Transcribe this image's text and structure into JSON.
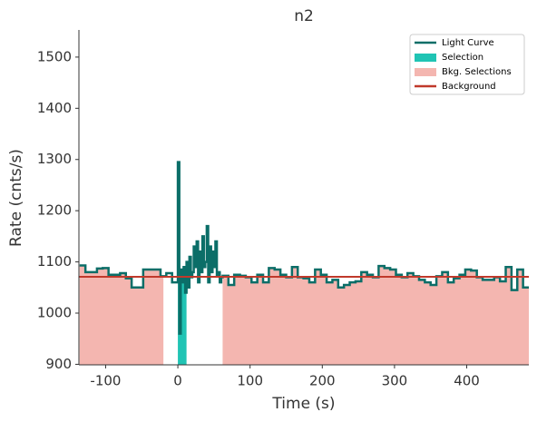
{
  "chart_data": {
    "type": "step",
    "title": "n2",
    "x_label": "Time (s)",
    "y_label": "Rate (cnts/s)",
    "xlim": [
      -137,
      486
    ],
    "ylim": [
      899,
      1553
    ],
    "xticks": [
      -100,
      0,
      100,
      200,
      300,
      400
    ],
    "yticks": [
      900,
      1000,
      1100,
      1200,
      1300,
      1400,
      1500
    ],
    "legend": "upper right",
    "series": [
      {
        "name": "Light Curve",
        "color": "#0b6e68",
        "x": [
          -136,
          -128,
          -120,
          -112,
          -104,
          -96,
          -88,
          -80,
          -72,
          -64,
          -56,
          -48,
          -40,
          -32,
          -24,
          -16,
          -8,
          0,
          2,
          4,
          6,
          8,
          10,
          12,
          14,
          16,
          18,
          20,
          22,
          24,
          26,
          28,
          30,
          32,
          34,
          36,
          38,
          40,
          42,
          44,
          46,
          48,
          50,
          52,
          54,
          56,
          58,
          60,
          62,
          70,
          78,
          86,
          94,
          102,
          110,
          118,
          126,
          134,
          142,
          150,
          158,
          166,
          174,
          182,
          190,
          198,
          206,
          214,
          222,
          230,
          238,
          246,
          254,
          262,
          270,
          278,
          286,
          294,
          302,
          310,
          318,
          326,
          334,
          342,
          350,
          358,
          366,
          374,
          382,
          390,
          398,
          406,
          414,
          422,
          430,
          438,
          446,
          454,
          462,
          470,
          478
        ],
        "values": [
          1093,
          1080,
          1080,
          1087,
          1088,
          1075,
          1075,
          1078,
          1068,
          1050,
          1050,
          1085,
          1085,
          1085,
          1072,
          1078,
          1060,
          1295,
          960,
          1085,
          1060,
          1090,
          1040,
          1100,
          1050,
          1110,
          1070,
          1080,
          1130,
          1090,
          1140,
          1060,
          1120,
          1080,
          1150,
          1090,
          1100,
          1170,
          1060,
          1130,
          1080,
          1120,
          1090,
          1140,
          1075,
          1080,
          1060,
          1070,
          1073,
          1055,
          1075,
          1073,
          1070,
          1060,
          1075,
          1060,
          1088,
          1085,
          1075,
          1070,
          1090,
          1070,
          1068,
          1060,
          1085,
          1075,
          1060,
          1065,
          1050,
          1055,
          1060,
          1062,
          1080,
          1075,
          1070,
          1092,
          1088,
          1085,
          1075,
          1070,
          1078,
          1072,
          1065,
          1060,
          1055,
          1072,
          1080,
          1060,
          1068,
          1075,
          1085,
          1083,
          1070,
          1065,
          1065,
          1070,
          1062,
          1090,
          1045,
          1085,
          1050
        ]
      }
    ],
    "selection": {
      "name": "Selection",
      "color": "#20c4b4",
      "intervals": [
        [
          0,
          12
        ]
      ]
    },
    "bkg_selections": {
      "name": "Bkg. Selections",
      "color": "#f4b6b0",
      "intervals": [
        [
          -137,
          -20
        ],
        [
          62,
          486
        ]
      ]
    },
    "background": {
      "name": "Background",
      "color": "#c0392b",
      "value": 1071
    }
  }
}
